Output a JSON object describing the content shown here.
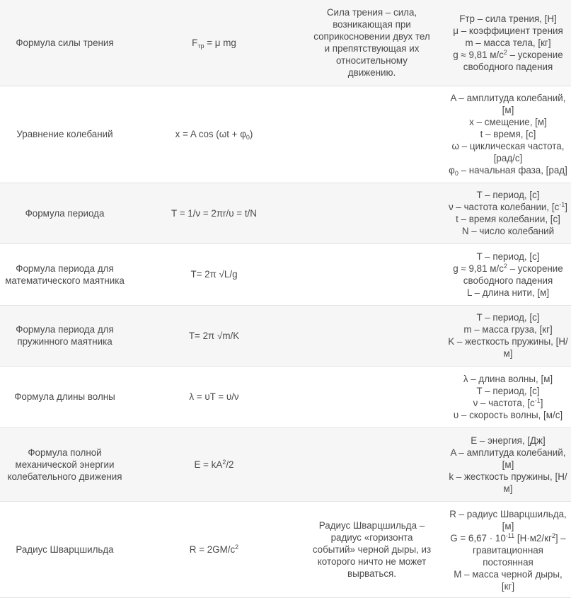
{
  "rows": [
    {
      "name": "Формула силы трения",
      "formula": {
        "a": "F",
        "sub": "тр",
        "b": " = μ mg"
      },
      "description": [
        "Сила трения – сила,",
        "возникающая при",
        "соприкосновении двух тел",
        "и препятствующая их",
        "относительному",
        "движению."
      ],
      "variables": [
        {
          "t": "Fтр – сила трения, [Н]"
        },
        {
          "t": "μ – коэффициент трения"
        },
        {
          "t": "m – масса тела, [кг]"
        },
        {
          "t": "g ≈ 9,81 м/с",
          "sup": "2",
          "t2": " – ускорение"
        },
        {
          "t": "свободного падения"
        }
      ]
    },
    {
      "name": "Уравнение колебаний",
      "formula": {
        "a": "x = A cos (ωt + φ",
        "sub": "0",
        "b": ")"
      },
      "description": [],
      "variables": [
        {
          "t": "A – амплитуда колебаний,"
        },
        {
          "t": "[м]"
        },
        {
          "t": "x – смещение, [м]"
        },
        {
          "t": "t – время, [с]"
        },
        {
          "t": "ω – циклическая частота,"
        },
        {
          "t": "[рад/с]"
        },
        {
          "t": "φ",
          "sub": "0",
          "t2": " – начальная фаза, [рад]"
        }
      ]
    },
    {
      "name": "Формула периода",
      "formula": {
        "a": "T = 1/ν = 2πr/υ = t/N"
      },
      "description": [],
      "variables": [
        {
          "t": "T – период, [с]"
        },
        {
          "t": "ν – частота колебании, [с",
          "sup": "-1",
          "t2": "]"
        },
        {
          "t": "t – время колебании, [с]"
        },
        {
          "t": "N – число колебаний"
        }
      ]
    },
    {
      "name": "Формула периода для математического маятника",
      "formula": {
        "a": "T= 2π √L/g"
      },
      "description": [],
      "variables": [
        {
          "t": "T – период, [с]"
        },
        {
          "t": "g ≈ 9,81 м/с",
          "sup": "2",
          "t2": " – ускорение"
        },
        {
          "t": "свободного падения"
        },
        {
          "t": "L – длина нити, [м]"
        }
      ]
    },
    {
      "name": "Формула периода для пружинного маятника",
      "formula": {
        "a": "T= 2π √m/K"
      },
      "description": [],
      "variables": [
        {
          "t": "T – период, [с]"
        },
        {
          "t": "m – масса груза, [кг]"
        },
        {
          "t": "K – жесткость пружины, [Н/"
        },
        {
          "t": "м]"
        }
      ]
    },
    {
      "name": "Формула длины волны",
      "formula": {
        "a": "λ = υT = υ/ν"
      },
      "description": [],
      "variables": [
        {
          "t": "λ – длина волны, [м]"
        },
        {
          "t": "T – период, [с]"
        },
        {
          "t": "ν – частота, [с",
          "sup": "-1",
          "t2": "]"
        },
        {
          "t": "υ – скорость волны, [м/с]"
        }
      ]
    },
    {
      "name": "Формула полной механической энергии колебательного движения",
      "formula": {
        "a": "E = kA",
        "sup": "2",
        "b": "/2"
      },
      "description": [],
      "variables": [
        {
          "t": "E – энергия, [Дж]"
        },
        {
          "t": "A – амплитуда колебаний,"
        },
        {
          "t": "[м]"
        },
        {
          "t": "k – жесткость пружины, [Н/"
        },
        {
          "t": "м]"
        }
      ]
    },
    {
      "name": "Радиус Шварцшильда",
      "formula": {
        "a": "R = 2GM/c",
        "sup": "2"
      },
      "description": [
        "Радиус Шварцшильда –",
        "радиус «горизонта",
        "событий» черной дыры, из",
        "которого ничто не может",
        "вырваться."
      ],
      "variables": [
        {
          "t": "R – радиус Шварцшильда,"
        },
        {
          "t": "[м]"
        },
        {
          "t": "G = 6,67 · 10",
          "sup": "-11",
          "t2": " [Н·м2/кг",
          "sup2": "2",
          "t3": "] –"
        },
        {
          "t": "гравитационная"
        },
        {
          "t": "постоянная"
        },
        {
          "t": "M – масса черной дыры,"
        },
        {
          "t": "[кг]"
        }
      ]
    }
  ]
}
